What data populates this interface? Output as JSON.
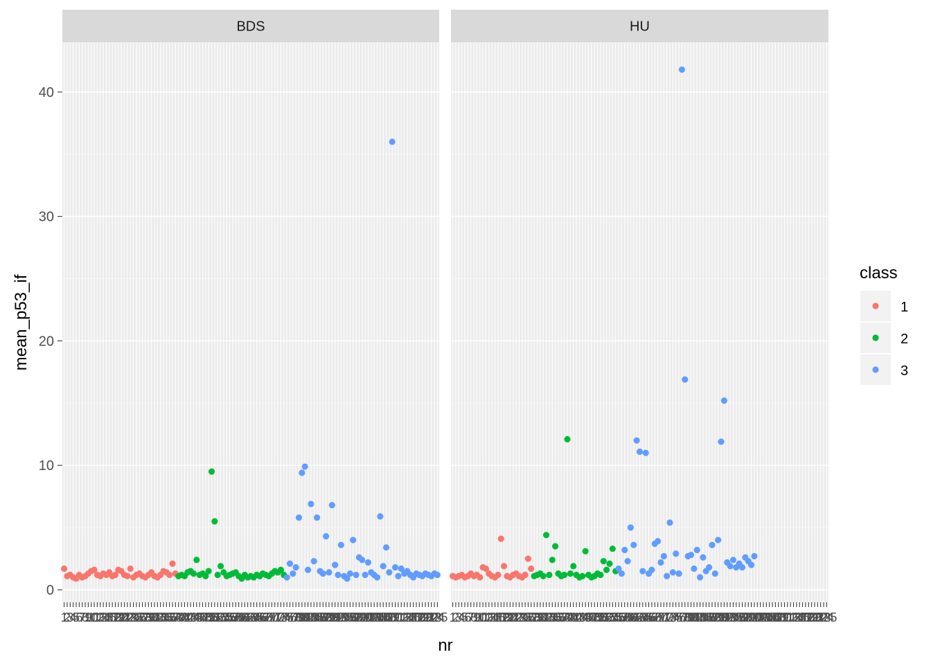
{
  "chart_data": {
    "type": "scatter",
    "facets": [
      "BDS",
      "HU"
    ],
    "xlabel": "nr",
    "ylabel": "mean_p53_if",
    "x_axis": "categorical (nr 1-125), tick labels overlapping",
    "ylim": [
      -1,
      44
    ],
    "yticks": [
      0,
      10,
      20,
      30,
      40
    ],
    "legend": {
      "title": "class",
      "position": "right",
      "entries": [
        {
          "label": "1",
          "color": "#F8766D"
        },
        {
          "label": "2",
          "color": "#00BA38"
        },
        {
          "label": "3",
          "color": "#619CFF"
        }
      ]
    },
    "panel_strip_color": "#D9D9D9",
    "panel_background": "#EBEBEB",
    "grid": true,
    "series": [
      {
        "facet": "BDS",
        "points": {
          "class1": [
            [
              1,
              1.7
            ],
            [
              2,
              1.1
            ],
            [
              3,
              1.2
            ],
            [
              4,
              1.0
            ],
            [
              5,
              0.9
            ],
            [
              6,
              1.2
            ],
            [
              7,
              1.0
            ],
            [
              8,
              1.1
            ],
            [
              9,
              1.3
            ],
            [
              10,
              1.5
            ],
            [
              11,
              1.6
            ],
            [
              12,
              1.2
            ],
            [
              13,
              1.1
            ],
            [
              14,
              1.3
            ],
            [
              15,
              1.2
            ],
            [
              16,
              1.4
            ],
            [
              17,
              1.1
            ],
            [
              18,
              1.2
            ],
            [
              19,
              1.6
            ],
            [
              20,
              1.5
            ],
            [
              21,
              1.2
            ],
            [
              22,
              1.1
            ],
            [
              23,
              1.7
            ],
            [
              24,
              1.0
            ],
            [
              25,
              1.2
            ],
            [
              26,
              1.3
            ],
            [
              27,
              1.1
            ],
            [
              28,
              1.0
            ],
            [
              29,
              1.2
            ],
            [
              30,
              1.4
            ],
            [
              31,
              1.1
            ],
            [
              32,
              1.0
            ],
            [
              33,
              1.2
            ],
            [
              34,
              1.5
            ],
            [
              35,
              1.4
            ],
            [
              36,
              1.2
            ],
            [
              37,
              2.1
            ],
            [
              38,
              1.3
            ]
          ],
          "class2": [
            [
              39,
              1.1
            ],
            [
              40,
              1.2
            ],
            [
              41,
              1.1
            ],
            [
              42,
              1.4
            ],
            [
              43,
              1.5
            ],
            [
              44,
              1.3
            ],
            [
              45,
              2.4
            ],
            [
              46,
              1.2
            ],
            [
              47,
              1.3
            ],
            [
              48,
              1.1
            ],
            [
              49,
              1.5
            ],
            [
              50,
              9.5
            ],
            [
              51,
              5.5
            ],
            [
              52,
              1.2
            ],
            [
              53,
              1.9
            ],
            [
              54,
              1.4
            ],
            [
              55,
              1.1
            ],
            [
              56,
              1.2
            ],
            [
              57,
              1.3
            ],
            [
              58,
              1.4
            ],
            [
              59,
              1.1
            ],
            [
              60,
              0.9
            ],
            [
              61,
              1.2
            ],
            [
              62,
              1.0
            ],
            [
              63,
              1.1
            ],
            [
              64,
              1.0
            ],
            [
              65,
              1.2
            ],
            [
              66,
              1.1
            ],
            [
              67,
              1.3
            ],
            [
              68,
              1.2
            ],
            [
              69,
              1.1
            ],
            [
              70,
              1.3
            ],
            [
              71,
              1.5
            ],
            [
              72,
              1.4
            ],
            [
              73,
              1.6
            ],
            [
              74,
              1.2
            ]
          ],
          "class3": [
            [
              75,
              1.0
            ],
            [
              76,
              2.1
            ],
            [
              77,
              1.3
            ],
            [
              78,
              1.8
            ],
            [
              79,
              5.8
            ],
            [
              80,
              9.4
            ],
            [
              81,
              9.9
            ],
            [
              82,
              1.6
            ],
            [
              83,
              6.9
            ],
            [
              84,
              2.3
            ],
            [
              85,
              5.8
            ],
            [
              86,
              1.5
            ],
            [
              87,
              1.3
            ],
            [
              88,
              4.3
            ],
            [
              89,
              1.4
            ],
            [
              90,
              6.8
            ],
            [
              91,
              2.0
            ],
            [
              92,
              1.2
            ],
            [
              93,
              3.6
            ],
            [
              94,
              1.1
            ],
            [
              95,
              0.9
            ],
            [
              96,
              1.3
            ],
            [
              97,
              4.0
            ],
            [
              98,
              1.2
            ],
            [
              99,
              2.6
            ],
            [
              100,
              2.4
            ],
            [
              101,
              1.2
            ],
            [
              102,
              2.2
            ],
            [
              103,
              1.4
            ],
            [
              104,
              1.2
            ],
            [
              105,
              1.0
            ],
            [
              106,
              5.9
            ],
            [
              107,
              1.9
            ],
            [
              108,
              3.4
            ],
            [
              109,
              1.4
            ],
            [
              110,
              36.0
            ],
            [
              111,
              1.8
            ],
            [
              112,
              1.1
            ],
            [
              113,
              1.7
            ],
            [
              114,
              1.3
            ],
            [
              115,
              1.5
            ],
            [
              116,
              1.2
            ],
            [
              117,
              1.0
            ],
            [
              118,
              1.3
            ],
            [
              119,
              1.2
            ],
            [
              120,
              1.1
            ],
            [
              121,
              1.3
            ],
            [
              122,
              1.2
            ],
            [
              123,
              1.1
            ],
            [
              124,
              1.3
            ],
            [
              125,
              1.2
            ]
          ]
        }
      },
      {
        "facet": "HU",
        "points": {
          "class1": [
            [
              1,
              1.1
            ],
            [
              2,
              1.0
            ],
            [
              3,
              1.1
            ],
            [
              4,
              1.2
            ],
            [
              5,
              1.0
            ],
            [
              6,
              1.1
            ],
            [
              7,
              1.3
            ],
            [
              8,
              1.1
            ],
            [
              9,
              1.2
            ],
            [
              10,
              1.0
            ],
            [
              11,
              1.8
            ],
            [
              12,
              1.7
            ],
            [
              13,
              1.3
            ],
            [
              14,
              1.1
            ],
            [
              15,
              1.0
            ],
            [
              16,
              1.2
            ],
            [
              17,
              4.1
            ],
            [
              18,
              1.9
            ],
            [
              19,
              1.1
            ],
            [
              20,
              1.0
            ],
            [
              21,
              1.2
            ],
            [
              22,
              1.3
            ],
            [
              23,
              1.1
            ],
            [
              24,
              1.0
            ],
            [
              25,
              1.2
            ],
            [
              26,
              2.5
            ],
            [
              27,
              1.7
            ]
          ],
          "class2": [
            [
              28,
              1.1
            ],
            [
              29,
              1.2
            ],
            [
              30,
              1.3
            ],
            [
              31,
              1.1
            ],
            [
              32,
              4.4
            ],
            [
              33,
              1.2
            ],
            [
              34,
              2.4
            ],
            [
              35,
              3.5
            ],
            [
              36,
              1.3
            ],
            [
              37,
              1.1
            ],
            [
              38,
              1.2
            ],
            [
              39,
              12.1
            ],
            [
              40,
              1.3
            ],
            [
              41,
              1.9
            ],
            [
              42,
              1.2
            ],
            [
              43,
              1.0
            ],
            [
              44,
              1.1
            ],
            [
              45,
              3.1
            ],
            [
              46,
              1.2
            ],
            [
              47,
              1.0
            ],
            [
              48,
              1.1
            ],
            [
              49,
              1.3
            ],
            [
              50,
              1.2
            ],
            [
              51,
              2.3
            ],
            [
              52,
              1.6
            ],
            [
              53,
              2.1
            ],
            [
              54,
              3.3
            ],
            [
              55,
              1.5
            ]
          ],
          "class3": [
            [
              56,
              1.7
            ],
            [
              57,
              1.3
            ],
            [
              58,
              3.2
            ],
            [
              59,
              2.3
            ],
            [
              60,
              5.0
            ],
            [
              61,
              3.6
            ],
            [
              62,
              12.0
            ],
            [
              63,
              11.1
            ],
            [
              64,
              1.5
            ],
            [
              65,
              11.0
            ],
            [
              66,
              1.3
            ],
            [
              67,
              1.6
            ],
            [
              68,
              3.7
            ],
            [
              69,
              3.9
            ],
            [
              70,
              2.2
            ],
            [
              71,
              2.7
            ],
            [
              72,
              1.1
            ],
            [
              73,
              5.4
            ],
            [
              74,
              1.4
            ],
            [
              75,
              2.9
            ],
            [
              76,
              1.3
            ],
            [
              77,
              41.8
            ],
            [
              78,
              16.9
            ],
            [
              79,
              2.7
            ],
            [
              80,
              2.8
            ],
            [
              81,
              1.7
            ],
            [
              82,
              3.2
            ],
            [
              83,
              1.0
            ],
            [
              84,
              2.6
            ],
            [
              85,
              1.5
            ],
            [
              86,
              1.8
            ],
            [
              87,
              3.6
            ],
            [
              88,
              1.3
            ],
            [
              89,
              4.0
            ],
            [
              90,
              11.9
            ],
            [
              91,
              15.2
            ],
            [
              92,
              2.2
            ],
            [
              93,
              1.9
            ],
            [
              94,
              2.4
            ],
            [
              95,
              1.8
            ],
            [
              96,
              2.1
            ],
            [
              97,
              1.8
            ],
            [
              98,
              2.6
            ],
            [
              99,
              2.3
            ],
            [
              100,
              2.0
            ],
            [
              101,
              2.7
            ]
          ]
        }
      }
    ]
  }
}
